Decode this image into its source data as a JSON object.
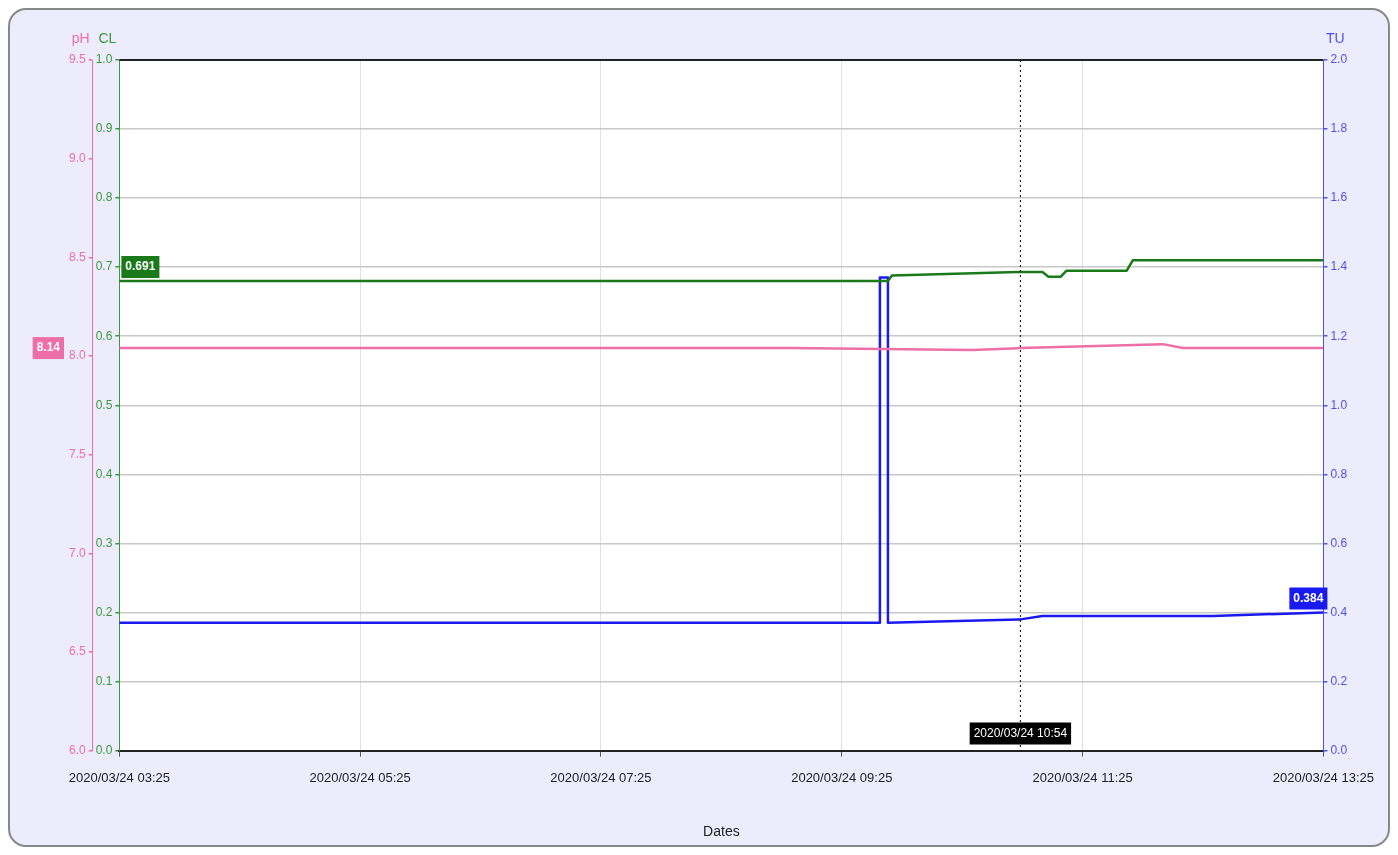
{
  "chart_data": {
    "type": "line",
    "xlabel": "Dates",
    "ylabel": "CL",
    "y2label": "pH",
    "y3label": "TU",
    "xlim": [
      "2020-03-24T03:25",
      "2020-03-24T13:25"
    ],
    "xticks": [
      {
        "value": "2020-03-24T03:25",
        "label": "2020/03/24 03:25"
      },
      {
        "value": "2020-03-24T05:25",
        "label": "2020/03/24 05:25"
      },
      {
        "value": "2020-03-24T07:25",
        "label": "2020/03/24 07:25"
      },
      {
        "value": "2020-03-24T09:25",
        "label": "2020/03/24 09:25"
      },
      {
        "value": "2020-03-24T11:25",
        "label": "2020/03/24 11:25"
      },
      {
        "value": "2020-03-24T13:25",
        "label": "2020/03/24 13:25"
      }
    ],
    "ylim": [
      0,
      1
    ],
    "yticks": [
      {
        "value": 0,
        "label": "0.0"
      },
      {
        "value": 0.1,
        "label": "0.1"
      },
      {
        "value": 0.2,
        "label": "0.2"
      },
      {
        "value": 0.3,
        "label": "0.3"
      },
      {
        "value": 0.4,
        "label": "0.4"
      },
      {
        "value": 0.5,
        "label": "0.5"
      },
      {
        "value": 0.6,
        "label": "0.6"
      },
      {
        "value": 0.7,
        "label": "0.7"
      },
      {
        "value": 0.8,
        "label": "0.8"
      },
      {
        "value": 0.9,
        "label": "0.9"
      },
      {
        "value": 1,
        "label": "1.0"
      }
    ],
    "y2lim": [
      6,
      9.5
    ],
    "y2ticks": [
      {
        "value": 6,
        "label": "6.0"
      },
      {
        "value": 6.5,
        "label": "6.5"
      },
      {
        "value": 7,
        "label": "7.0"
      },
      {
        "value": 7.5,
        "label": "7.5"
      },
      {
        "value": 8,
        "label": "8.0"
      },
      {
        "value": 8.5,
        "label": "8.5"
      },
      {
        "value": 9,
        "label": "9.0"
      },
      {
        "value": 9.5,
        "label": "9.5"
      }
    ],
    "y3lim": [
      0,
      2
    ],
    "y3ticks": [
      {
        "value": 0,
        "label": "0.0"
      },
      {
        "value": 0.2,
        "label": "0.2"
      },
      {
        "value": 0.4,
        "label": "0.4"
      },
      {
        "value": 0.6,
        "label": "0.6"
      },
      {
        "value": 0.8,
        "label": "0.8"
      },
      {
        "value": 1,
        "label": "1.0"
      },
      {
        "value": 1.2,
        "label": "1.2"
      },
      {
        "value": 1.4,
        "label": "1.4"
      },
      {
        "value": 1.6,
        "label": "1.6"
      },
      {
        "value": 1.8,
        "label": "1.8"
      },
      {
        "value": 2,
        "label": "2.0"
      }
    ],
    "grid": true,
    "legend": false,
    "marker": "none",
    "line_style": "solid",
    "series": [
      {
        "color": "#1a7a1a",
        "x": [
          "2020-03-24T03:25",
          "2020-03-24T09:48",
          "2020-03-24T09:50",
          "2020-03-24T10:54",
          "2020-03-24T11:05",
          "2020-03-24T11:08",
          "2020-03-24T11:14",
          "2020-03-24T11:17",
          "2020-03-24T11:47",
          "2020-03-24T11:50",
          "2020-03-24T13:25"
        ],
        "values": [
          0.68,
          0.68,
          0.688,
          0.693,
          0.693,
          0.686,
          0.686,
          0.695,
          0.695,
          0.71,
          0.71
        ]
      },
      {
        "color": "#ee6fa8",
        "axis": "y2",
        "x": [
          "2020-03-24T03:25",
          "2020-03-24T09:00",
          "2020-03-24T10:30",
          "2020-03-24T10:54",
          "2020-03-24T12:05",
          "2020-03-24T12:15",
          "2020-03-24T13:25"
        ],
        "values": [
          8.04,
          8.04,
          8.03,
          8.04,
          8.06,
          8.04,
          8.04
        ]
      },
      {
        "color": "#1a1af0",
        "axis": "y3",
        "x": [
          "2020-03-24T03:25",
          "2020-03-24T09:44",
          "2020-03-24T09:44",
          "2020-03-24T09:48",
          "2020-03-24T09:48",
          "2020-03-24T10:54",
          "2020-03-24T11:05",
          "2020-03-24T12:30",
          "2020-03-24T13:25"
        ],
        "values": [
          0.37,
          0.37,
          1.37,
          1.37,
          0.37,
          0.38,
          0.39,
          0.39,
          0.4
        ]
      }
    ],
    "ref_lines": [
      {
        "axis": "x",
        "value": "2020-03-24T10:54",
        "label": "2020/03/24 10:54",
        "color": "#000000",
        "line_style": "dotted"
      }
    ],
    "annotations": [
      "0.691",
      "8.14",
      "0.384"
    ]
  }
}
